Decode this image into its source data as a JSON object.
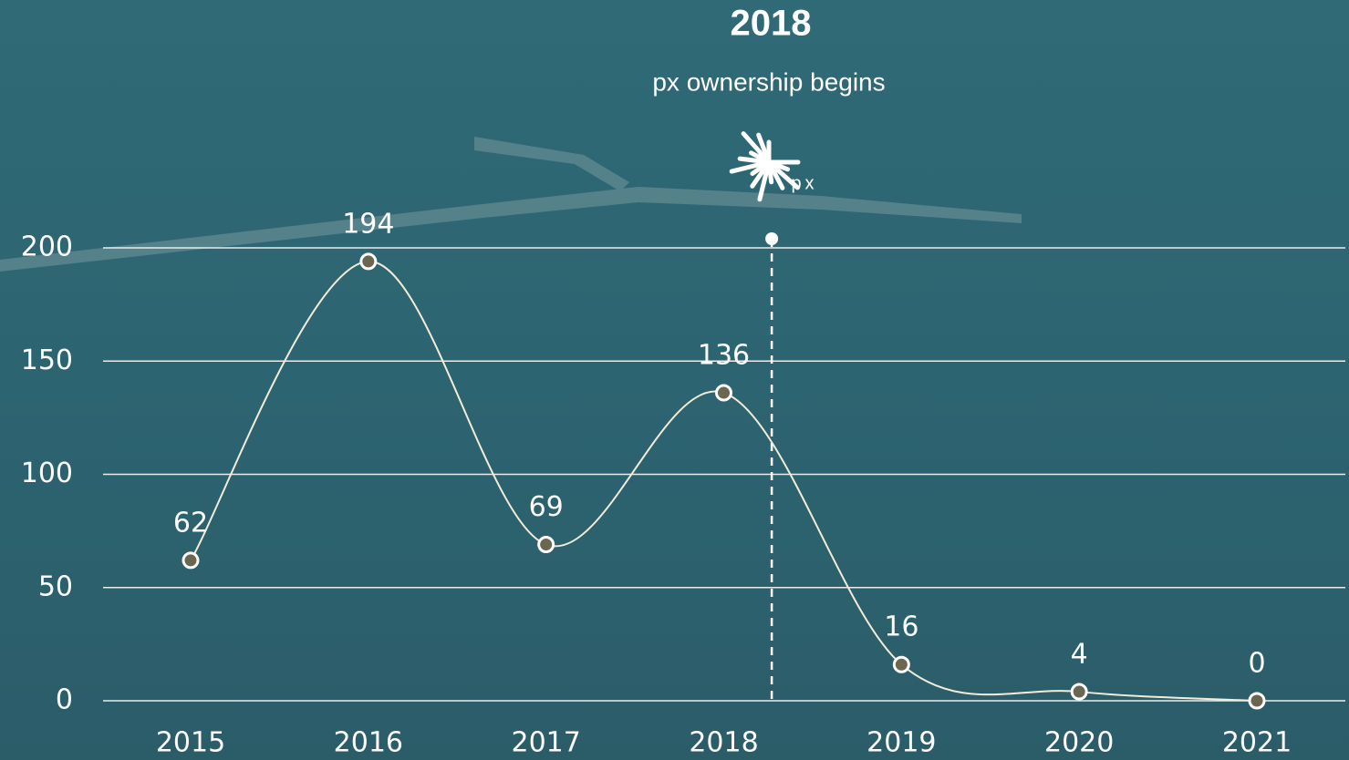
{
  "chart_data": {
    "type": "line",
    "annotation": {
      "title": "2018",
      "text": "px ownership begins",
      "logo": "px"
    },
    "categories": [
      "2015",
      "2016",
      "2017",
      "2018",
      "2019",
      "2020",
      "2021"
    ],
    "values": [
      62,
      194,
      69,
      136,
      16,
      4,
      0
    ],
    "color": "#f2ecd8",
    "marker_color": "#6b6650",
    "ylim": [
      0,
      200
    ],
    "yticks": [
      0,
      50,
      100,
      150,
      200
    ],
    "grid": true
  }
}
